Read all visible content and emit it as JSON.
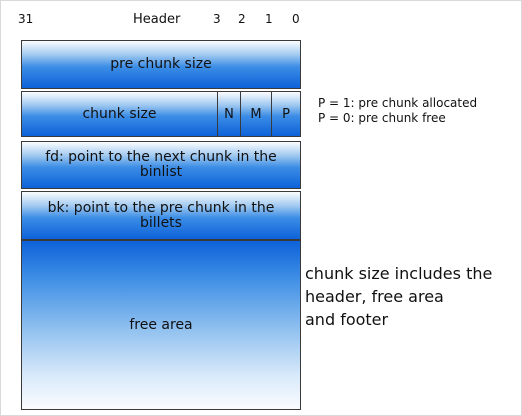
{
  "header": {
    "bit_high": "31",
    "title": "Header",
    "bits": [
      "3",
      "2",
      "1",
      "0"
    ]
  },
  "blocks": {
    "pre_chunk_size": "pre chunk size",
    "chunk_size": "chunk size",
    "flags": [
      "N",
      "M",
      "P"
    ],
    "fd": "fd: point to the next chunk in the binlist",
    "bk": "bk: point to the pre chunk in the billets",
    "free_area": "free area"
  },
  "notes": {
    "p1": "P = 1: pre chunk allocated",
    "p0": "P = 0: pre chunk free",
    "size_note": [
      "chunk size includes the",
      "header, free area",
      "and footer"
    ]
  },
  "colors": {
    "gradient_dark": "#0d62d8",
    "gradient_light": "#fbfdff",
    "border": "#3a3a3a"
  }
}
